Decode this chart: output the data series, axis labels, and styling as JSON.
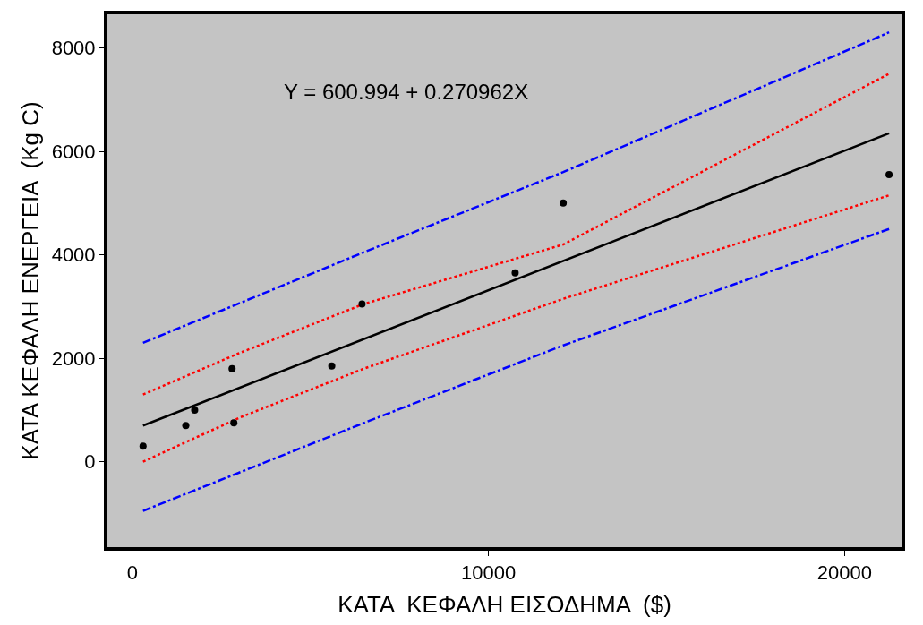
{
  "chart_data": {
    "type": "scatter",
    "xlabel": "ΚΑΤΑ  ΚΕΦΑΛΗ ΕΙΣΟΔΗΜΑ  ($)",
    "ylabel": "ΚΑΤΑ ΚΕΦΑΛΗ ΕΝΕΡΓΕΙΑ  (Kg C)",
    "annotations": [
      "Y = 600.994 + 0.270962X"
    ],
    "xlim": [
      -700,
      21600
    ],
    "ylim": [
      -1650,
      8650
    ],
    "xticks": [
      0,
      10000,
      20000
    ],
    "yticks": [
      0,
      2000,
      4000,
      6000,
      8000
    ],
    "grid": false,
    "legend": false,
    "series": [
      {
        "type": "line",
        "color": "#0000ff",
        "line_style": "dashed",
        "marker": "none",
        "x": [
          300,
          6500,
          12100,
          21250
        ],
        "values": [
          2300,
          4050,
          5600,
          8300
        ]
      },
      {
        "type": "line",
        "color": "#ff0000",
        "line_style": "dotted",
        "marker": "none",
        "x": [
          300,
          3000,
          6500,
          12100,
          21250
        ],
        "values": [
          1300,
          2100,
          3050,
          4200,
          7500
        ]
      },
      {
        "type": "line",
        "color": "#000000",
        "line_style": "solid",
        "marker": "none",
        "x": [
          300,
          21250
        ],
        "values": [
          700,
          6350
        ]
      },
      {
        "type": "line",
        "color": "#ff0000",
        "line_style": "dotted",
        "marker": "none",
        "x": [
          300,
          3000,
          6500,
          12100,
          21250
        ],
        "values": [
          0,
          850,
          1800,
          3150,
          5150
        ]
      },
      {
        "type": "line",
        "color": "#0000ff",
        "line_style": "dashed",
        "marker": "none",
        "x": [
          300,
          6500,
          12100,
          21250
        ],
        "values": [
          -950,
          750,
          2250,
          4500
        ]
      },
      {
        "color": "#000000",
        "marker": "circle",
        "x": [
          300,
          1500,
          1750,
          2800,
          2850,
          5600,
          6450,
          10750,
          12100,
          21250
        ],
        "values": [
          300,
          700,
          1000,
          1800,
          750,
          1850,
          3050,
          3650,
          5000,
          5550
        ]
      }
    ]
  }
}
